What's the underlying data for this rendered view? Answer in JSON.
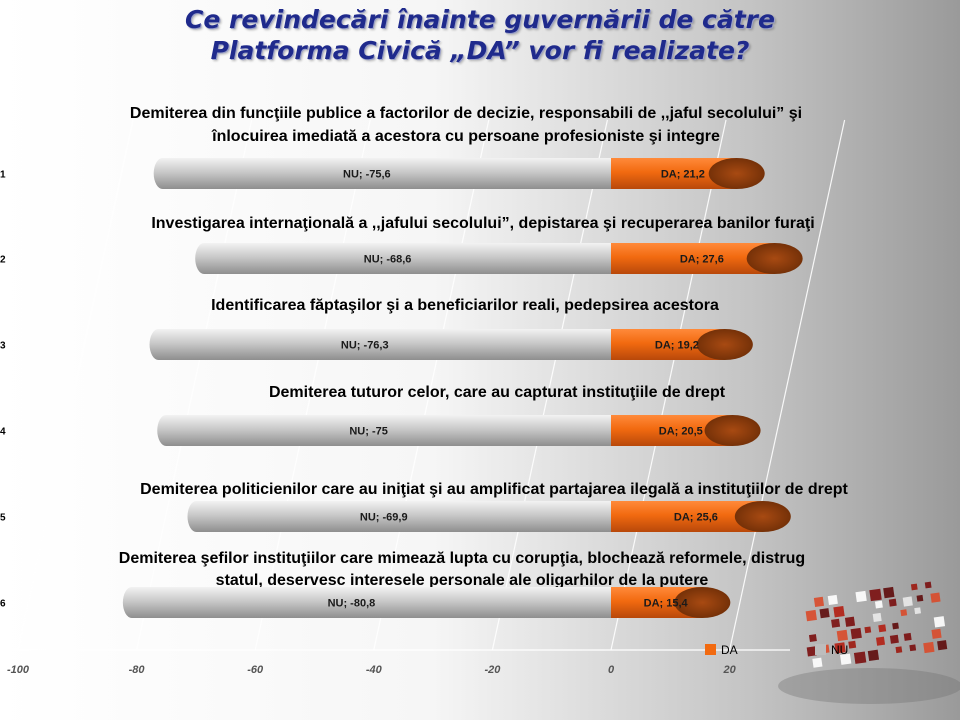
{
  "slide": {
    "title_line1": "Ce revindecări înainte guvernării de către",
    "title_line2": "Platforma Civică „DA” vor fi realizate?"
  },
  "chart_data": {
    "type": "bar",
    "orientation": "horizontal",
    "stacked": true,
    "categories": [
      "1",
      "2",
      "3",
      "4",
      "5",
      "6"
    ],
    "questions": [
      [
        "Demiterea din funcţiile publice a factorilor de decizie, responsabili de ,,jaful secolului” şi",
        "înlocuirea imediată a acestora cu persoane profesioniste şi integre"
      ],
      [
        "Investigarea internaţională a ,,jafului secolului”, depistarea şi recuperarea  banilor furaţi"
      ],
      [
        "Identificarea făptaşilor şi a beneficiarilor reali, pedepsirea acestora"
      ],
      [
        "Demiterea tuturor celor, care au capturat instituţiile de drept"
      ],
      [
        "Demiterea politicienilor care au iniţiat şi au amplificat partajarea ilegală a instituţiilor de drept"
      ],
      [
        "Demiterea şefilor instituţiilor care mimează lupta cu corupţia, blochează reformele, distrug",
        "statul, deservesc interesele personale ale oligarhilor de la putere"
      ]
    ],
    "series": [
      {
        "name": "DA",
        "color": "#f26a10",
        "values": [
          21.2,
          27.6,
          19.2,
          20.5,
          25.6,
          15.4
        ],
        "labels": [
          "DA; 21,2",
          "DA; 27,6",
          "DA; 19,2",
          "DA; 20,5",
          "DA; 25,6",
          "DA; 15,4"
        ]
      },
      {
        "name": "NU",
        "color": "#bdbdbd",
        "values": [
          -75.6,
          -68.6,
          -76.3,
          -75,
          -69.9,
          -80.8
        ],
        "labels": [
          "NU; -75,6",
          "NU; -68,6",
          "NU; -76,3",
          "NU; -75",
          "NU; -69,9",
          "NU; -80,8"
        ]
      }
    ],
    "xlim": [
      -100,
      20
    ],
    "xticks": [
      -100,
      -80,
      -60,
      -40,
      -20,
      0,
      20
    ],
    "xtick_labels": [
      "-100",
      "-80",
      "-60",
      "-40",
      "-20",
      "0",
      "20"
    ],
    "grid": true,
    "legend_position": "bottom-right"
  }
}
